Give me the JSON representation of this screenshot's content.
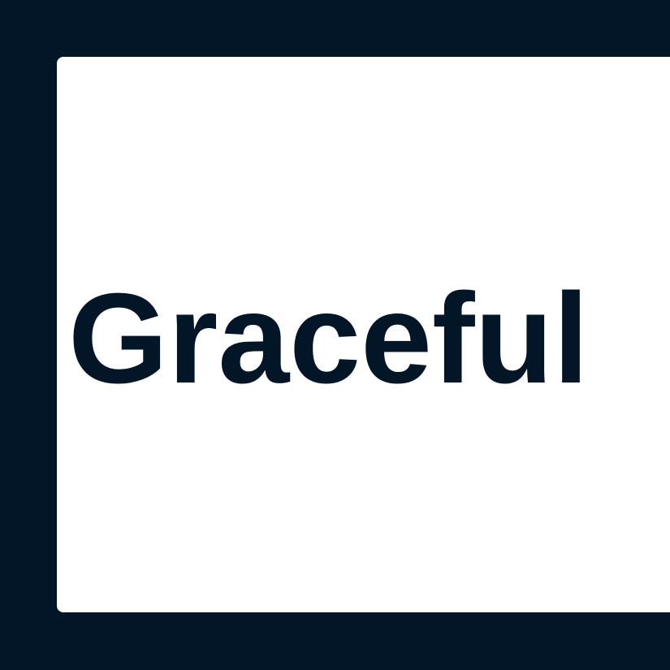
{
  "word": "Graceful",
  "colors": {
    "background": "#021628",
    "card": "#ffffff",
    "text": "#021628"
  }
}
